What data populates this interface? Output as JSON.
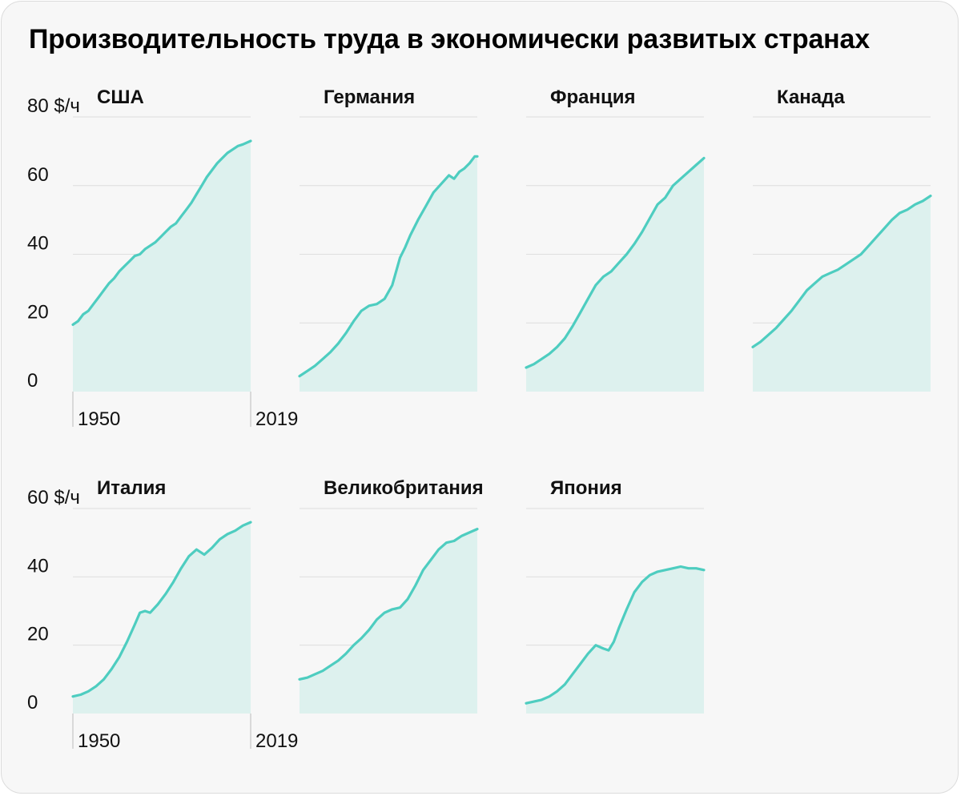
{
  "title": "Производительность труда в экономически развитых странах",
  "colors": {
    "line": "#4ecdc0",
    "area": "#ddf1ee",
    "grid": "#dedede",
    "axis": "#cfcfcf",
    "text": "#111111",
    "background": "#f7f7f7"
  },
  "chart_data": [
    {
      "type": "area",
      "title": "США",
      "ylim": [
        0,
        80
      ],
      "xlim": [
        1950,
        2019
      ],
      "yticks": [
        "0",
        "20",
        "40",
        "60",
        "80 $/ч"
      ],
      "xticks": [
        "1950",
        "2019"
      ],
      "x": [
        1950,
        1952,
        1954,
        1956,
        1958,
        1960,
        1962,
        1964,
        1966,
        1968,
        1970,
        1972,
        1974,
        1976,
        1978,
        1980,
        1982,
        1984,
        1986,
        1988,
        1990,
        1992,
        1994,
        1996,
        1998,
        2000,
        2002,
        2004,
        2006,
        2008,
        2010,
        2012,
        2014,
        2016,
        2019
      ],
      "values": [
        19.5,
        20.5,
        22.5,
        23.5,
        25.5,
        27.5,
        29.5,
        31.5,
        33,
        35,
        36.5,
        38,
        39.5,
        40,
        41.5,
        42.5,
        43.5,
        45,
        46.5,
        48,
        49,
        51,
        53,
        55,
        57.5,
        60,
        62.5,
        64.5,
        66.5,
        68,
        69.5,
        70.5,
        71.5,
        72,
        73
      ]
    },
    {
      "type": "area",
      "title": "Германия",
      "ylim": [
        0,
        80
      ],
      "xlim": [
        1950,
        2019
      ],
      "x": [
        1950,
        1953,
        1956,
        1959,
        1962,
        1965,
        1968,
        1971,
        1974,
        1977,
        1980,
        1983,
        1986,
        1989,
        1991,
        1993,
        1996,
        1999,
        2002,
        2005,
        2008,
        2010,
        2012,
        2014,
        2016,
        2018,
        2019
      ],
      "values": [
        4.5,
        6,
        7.5,
        9.5,
        11.5,
        14,
        17,
        20.5,
        23.5,
        25,
        25.5,
        27,
        31,
        39,
        42,
        45.5,
        50,
        54,
        58,
        60.5,
        63,
        62,
        64,
        65,
        66.5,
        68.5,
        68.5
      ]
    },
    {
      "type": "area",
      "title": "Франция",
      "ylim": [
        0,
        80
      ],
      "xlim": [
        1950,
        2019
      ],
      "x": [
        1950,
        1953,
        1956,
        1959,
        1962,
        1965,
        1968,
        1971,
        1974,
        1977,
        1980,
        1983,
        1986,
        1989,
        1992,
        1995,
        1998,
        2001,
        2004,
        2007,
        2010,
        2013,
        2016,
        2019
      ],
      "values": [
        7,
        8,
        9.5,
        11,
        13,
        15.5,
        19,
        23,
        27,
        31,
        33.5,
        35,
        37.5,
        40,
        43,
        46.5,
        50.5,
        54.5,
        56.5,
        60,
        62,
        64,
        66,
        68
      ]
    },
    {
      "type": "area",
      "title": "Канада",
      "ylim": [
        0,
        80
      ],
      "xlim": [
        1950,
        2019
      ],
      "x": [
        1950,
        1953,
        1956,
        1959,
        1962,
        1965,
        1968,
        1971,
        1974,
        1977,
        1980,
        1983,
        1986,
        1989,
        1992,
        1995,
        1998,
        2001,
        2004,
        2007,
        2010,
        2013,
        2016,
        2019
      ],
      "values": [
        13,
        14.5,
        16.5,
        18.5,
        21,
        23.5,
        26.5,
        29.5,
        31.5,
        33.5,
        34.5,
        35.5,
        37,
        38.5,
        40,
        42.5,
        45,
        47.5,
        50,
        52,
        53,
        54.5,
        55.5,
        57
      ]
    },
    {
      "type": "area",
      "title": "Италия",
      "ylim": [
        0,
        60
      ],
      "xlim": [
        1950,
        2019
      ],
      "yticks": [
        "0",
        "20",
        "40",
        "60 $/ч"
      ],
      "xticks": [
        "1950",
        "2019"
      ],
      "x": [
        1950,
        1953,
        1956,
        1959,
        1962,
        1965,
        1968,
        1971,
        1974,
        1976,
        1978,
        1980,
        1983,
        1986,
        1989,
        1992,
        1995,
        1998,
        2001,
        2004,
        2007,
        2010,
        2013,
        2016,
        2019
      ],
      "values": [
        5,
        5.5,
        6.5,
        8,
        10,
        13,
        16.5,
        21,
        26,
        29.5,
        30,
        29.5,
        32,
        35,
        38.5,
        42.5,
        46,
        48,
        46.5,
        48.5,
        51,
        52.5,
        53.5,
        55,
        56
      ]
    },
    {
      "type": "area",
      "title": "Великобритания",
      "ylim": [
        0,
        60
      ],
      "xlim": [
        1950,
        2019
      ],
      "x": [
        1950,
        1953,
        1956,
        1959,
        1962,
        1965,
        1968,
        1971,
        1974,
        1977,
        1980,
        1983,
        1986,
        1989,
        1992,
        1995,
        1998,
        2001,
        2004,
        2007,
        2010,
        2013,
        2016,
        2019
      ],
      "values": [
        10,
        10.5,
        11.5,
        12.5,
        14,
        15.5,
        17.5,
        20,
        22,
        24.5,
        27.5,
        29.5,
        30.5,
        31,
        33.5,
        37.5,
        42,
        45,
        48,
        50,
        50.5,
        52,
        53,
        54
      ]
    },
    {
      "type": "area",
      "title": "Япония",
      "ylim": [
        0,
        60
      ],
      "xlim": [
        1950,
        2019
      ],
      "x": [
        1950,
        1953,
        1956,
        1959,
        1962,
        1965,
        1968,
        1971,
        1974,
        1977,
        1980,
        1982,
        1984,
        1986,
        1989,
        1992,
        1995,
        1998,
        2001,
        2004,
        2007,
        2010,
        2013,
        2016,
        2019
      ],
      "values": [
        3,
        3.5,
        4,
        5,
        6.5,
        8.5,
        11.5,
        14.5,
        17.5,
        20,
        19,
        18.5,
        21,
        25,
        30.5,
        35.5,
        38.5,
        40.5,
        41.5,
        42,
        42.5,
        43,
        42.5,
        42.5,
        42
      ]
    }
  ]
}
